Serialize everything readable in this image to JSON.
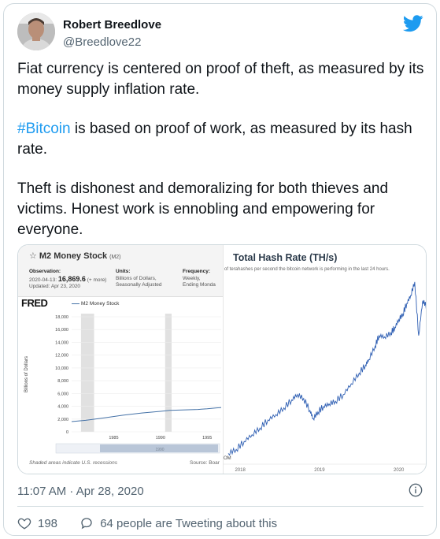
{
  "tweet": {
    "author_name": "Robert Breedlove",
    "author_handle": "@Breedlove22",
    "brand_icon": "twitter-bird-icon",
    "paragraphs": {
      "p1": "Fiat currency is centered on proof of theft, as measured by its money supply inflation rate.",
      "p2_hashtag": "#Bitcoin",
      "p2_rest": " is based on proof of work, as measured by its hash rate.",
      "p3": "Theft is dishonest and demoralizing for both thieves and victims. Honest work is ennobling and empowering for everyone."
    },
    "timestamp": "11:07 AM · Apr 28, 2020",
    "likes": "198",
    "tweeting_about": "64 people are Tweeting about this",
    "colors": {
      "link": "#1d9bf0",
      "secondary": "#536471",
      "like": "#536471"
    }
  },
  "media": {
    "left": {
      "title": "M2 Money Stock",
      "code": "(M2)",
      "observation_label": "Observation:",
      "observation_date": "2020-04-13:",
      "observation_value": "16,869.6",
      "observation_more": "(+ more)",
      "updated": "Updated: Apr 23, 2020",
      "units_label": "Units:",
      "units_line1": "Billions of Dollars,",
      "units_line2": "Seasonally Adjusted",
      "frequency_label": "Frequency:",
      "frequency_line1": "Weekly,",
      "frequency_line2": "Ending Monda",
      "logo": "FRED",
      "legend": "M2 Money Stock",
      "footnote": "Shaded areas indicate U.S. recessions",
      "source": "Source: Boar",
      "scroll_label": "1990"
    },
    "right": {
      "title": "Total Hash Rate (TH/s)",
      "subtitle": "of terahashes per second the bitcoin network is performing in the last 24 hours.",
      "corner_text": "OM"
    }
  },
  "chart_data": [
    {
      "type": "line",
      "title": "M2 Money Stock",
      "ylabel": "Billions of Dollars",
      "ylim": [
        0,
        18000
      ],
      "yticks": [
        "18,000",
        "16,000",
        "14,000",
        "12,000",
        "10,000",
        "8,000",
        "6,000",
        "4,000",
        "2,000",
        "0"
      ],
      "xticks": [
        "1985",
        "1990",
        "1995"
      ],
      "xlim": [
        1980.5,
        1996.5
      ],
      "recessions": [
        [
          1981.5,
          1982.9
        ],
        [
          1990.5,
          1991.2
        ]
      ],
      "series": [
        {
          "name": "M2 Money Stock",
          "x": [
            1980.5,
            1982,
            1984,
            1986,
            1988,
            1990,
            1991,
            1992,
            1993,
            1994,
            1995,
            1996,
            1996.5
          ],
          "values": [
            1600,
            1800,
            2200,
            2600,
            2950,
            3200,
            3350,
            3400,
            3450,
            3500,
            3600,
            3750,
            3800
          ]
        }
      ]
    },
    {
      "type": "line",
      "title": "Total Hash Rate (TH/s)",
      "xticks": [
        "2018",
        "2019",
        "2020"
      ],
      "xlim": [
        2017.85,
        2020.35
      ],
      "ylim": [
        0,
        140000000
      ],
      "series": [
        {
          "x": [
            2017.85,
            2017.95,
            2018.05,
            2018.15,
            2018.25,
            2018.35,
            2018.45,
            2018.55,
            2018.65,
            2018.72,
            2018.8,
            2018.88,
            2018.92,
            2018.98,
            2019.05,
            2019.12,
            2019.2,
            2019.3,
            2019.4,
            2019.5,
            2019.58,
            2019.62,
            2019.7,
            2019.75,
            2019.82,
            2019.9,
            2019.95,
            2020.0,
            2020.05,
            2020.1,
            2020.15,
            2020.2,
            2020.25,
            2020.3,
            2020.35
          ],
          "values": [
            8000000,
            11000000,
            17000000,
            22000000,
            27000000,
            33000000,
            37000000,
            42000000,
            48000000,
            52000000,
            49000000,
            40000000,
            34000000,
            39000000,
            43000000,
            45000000,
            47000000,
            52000000,
            60000000,
            68000000,
            74000000,
            78000000,
            88000000,
            96000000,
            95000000,
            98000000,
            102000000,
            108000000,
            112000000,
            120000000,
            126000000,
            136000000,
            96000000,
            122000000,
            118000000
          ]
        }
      ]
    }
  ]
}
